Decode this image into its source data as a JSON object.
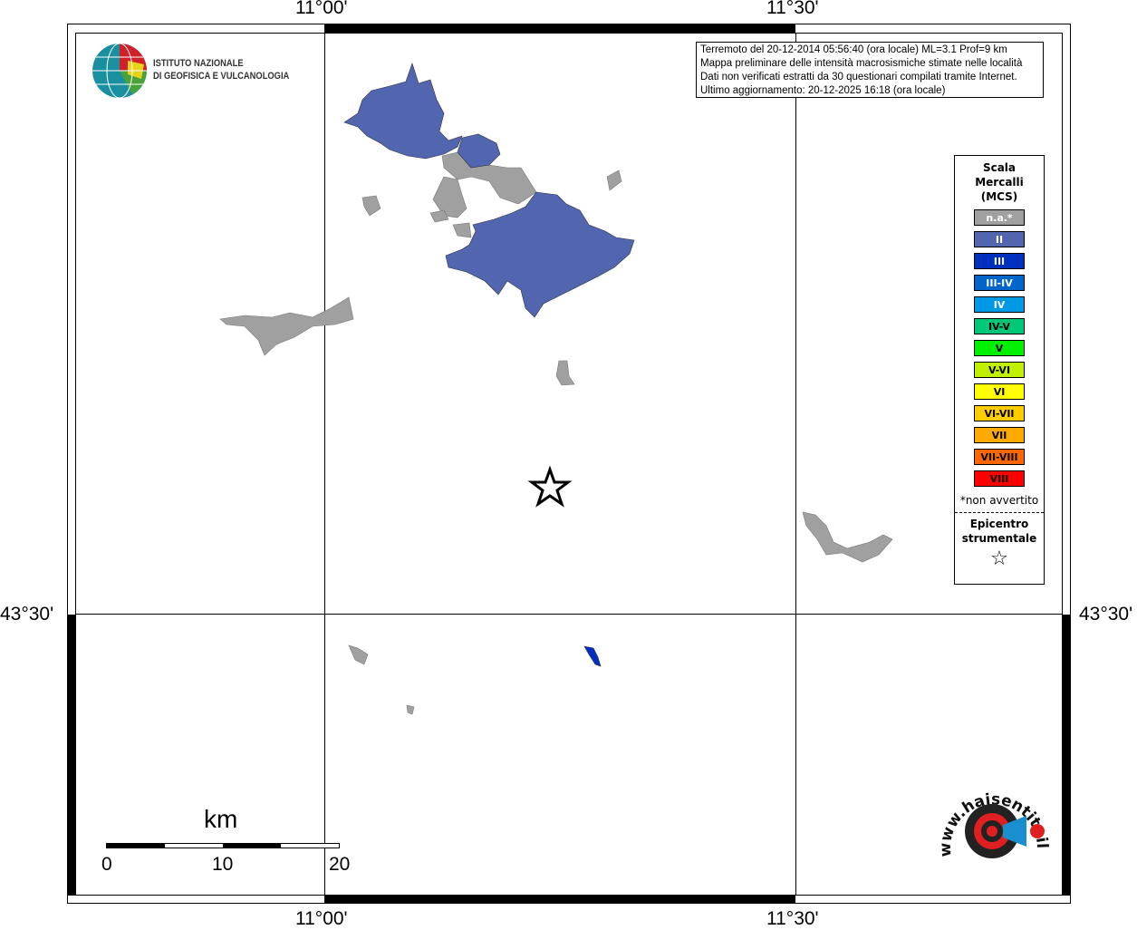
{
  "map": {
    "lon_ticks": [
      "11°00'",
      "11°30'"
    ],
    "lat_ticks": [
      "43°30'"
    ],
    "info": [
      "Terremoto del 20-12-2014 05:56:40 (ora locale) ML=3.1 Prof=9 km",
      "Mappa preliminare delle intensità macrosismiche stimate nelle località",
      "Dati non verificati estratti da 30 questionari compilati tramite Internet.",
      "Ultimo aggiornamento: 20-12-2025 16:18 (ora locale)"
    ],
    "colors": {
      "na": "#a0a0a0",
      "II": "#5266b0"
    }
  },
  "logo": {
    "line1": "ISTITUTO NAZIONALE",
    "line2": "DI GEOFISICA E VULCANOLOGIA"
  },
  "logo2": {
    "text": "www.haisentitoilterremoto.it"
  },
  "legend": {
    "title": [
      "Scala",
      "Mercalli",
      "(MCS)"
    ],
    "items": [
      {
        "label": "n.a.*",
        "color": "#a0a0a0",
        "text": "#ffffff"
      },
      {
        "label": "II",
        "color": "#5266b0",
        "text": "#ffffff"
      },
      {
        "label": "III",
        "color": "#0030c0",
        "text": "#ffffff"
      },
      {
        "label": "III-IV",
        "color": "#0066cc",
        "text": "#ffffff"
      },
      {
        "label": "IV",
        "color": "#0099e6",
        "text": "#ffffff"
      },
      {
        "label": "IV-V",
        "color": "#00c878",
        "text": "#000000"
      },
      {
        "label": "V",
        "color": "#00f000",
        "text": "#000000"
      },
      {
        "label": "V-VI",
        "color": "#c0f000",
        "text": "#000000"
      },
      {
        "label": "VI",
        "color": "#ffff00",
        "text": "#000000"
      },
      {
        "label": "VI-VII",
        "color": "#ffcc00",
        "text": "#000000"
      },
      {
        "label": "VII",
        "color": "#ffaa00",
        "text": "#000000"
      },
      {
        "label": "VII-VIII",
        "color": "#ff6600",
        "text": "#000000"
      },
      {
        "label": "VIII",
        "color": "#ff0000",
        "text": "#000000"
      }
    ],
    "note": "*non avvertito",
    "epicenter": [
      "Epicentro",
      "strumentale"
    ],
    "star": "☆"
  },
  "scale": {
    "unit": "km",
    "labels": [
      "0",
      "10",
      "20"
    ]
  }
}
